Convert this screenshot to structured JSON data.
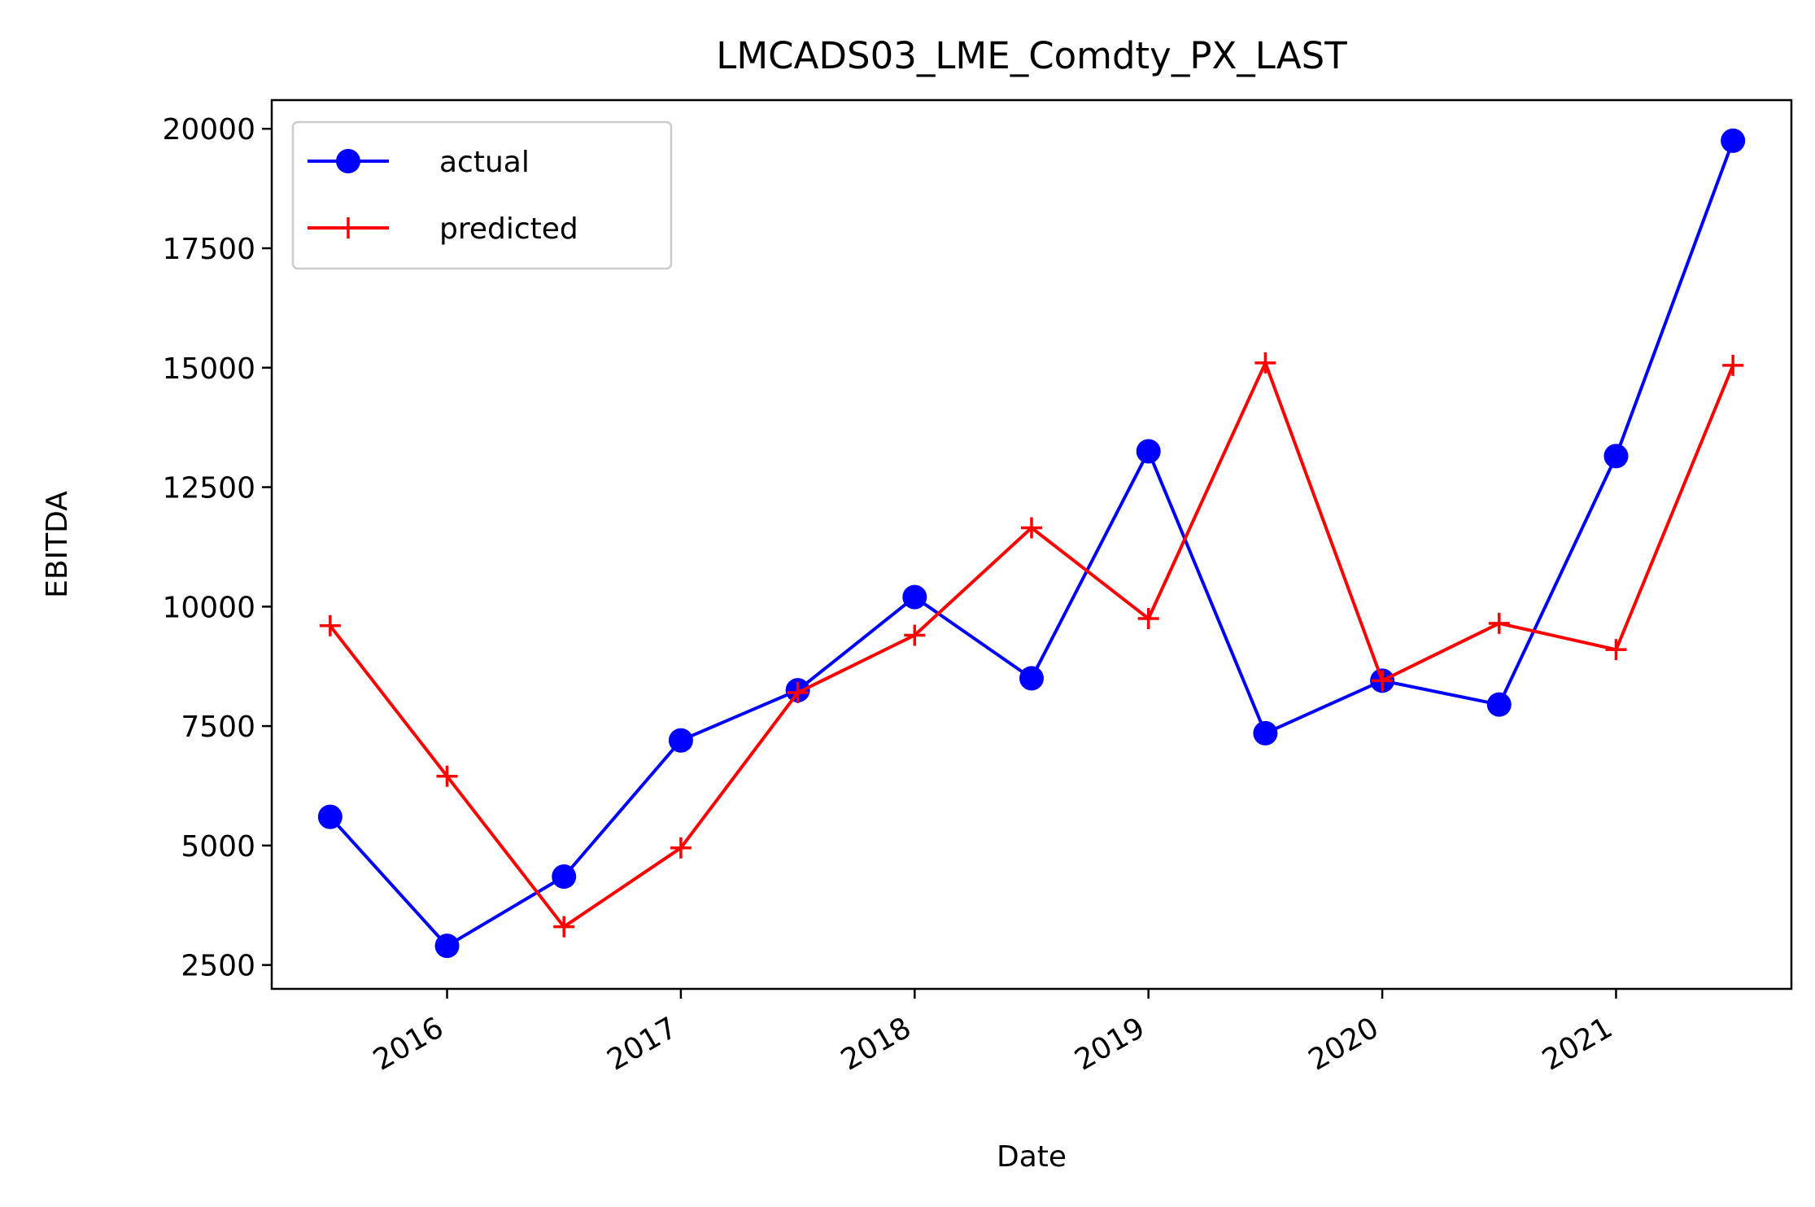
{
  "chart_data": {
    "type": "line",
    "title": "LMCADS03_LME_Comdty_PX_LAST",
    "xlabel": "Date",
    "ylabel": "EBITDA",
    "x": [
      "2015-07",
      "2016-01",
      "2016-07",
      "2017-01",
      "2017-07",
      "2018-01",
      "2018-07",
      "2019-01",
      "2019-07",
      "2020-01",
      "2020-07",
      "2021-01",
      "2021-07"
    ],
    "x_ticks": [
      "2016",
      "2017",
      "2018",
      "2019",
      "2020",
      "2021"
    ],
    "y_ticks": [
      "2500",
      "5000",
      "7500",
      "10000",
      "12500",
      "15000",
      "17500",
      "20000"
    ],
    "ylim": [
      2000,
      20600
    ],
    "grid": false,
    "legend_position": "upper-left",
    "series": [
      {
        "name": "actual",
        "color": "#0000ff",
        "marker": "circle",
        "values": [
          5600,
          2900,
          4350,
          7200,
          8250,
          10200,
          8500,
          13250,
          7350,
          8450,
          7950,
          13150,
          19750
        ]
      },
      {
        "name": "predicted",
        "color": "#ff0000",
        "marker": "plus",
        "values": [
          9600,
          6450,
          3300,
          4950,
          8200,
          9400,
          11650,
          9750,
          15100,
          8450,
          9650,
          9100,
          15050
        ]
      }
    ]
  }
}
